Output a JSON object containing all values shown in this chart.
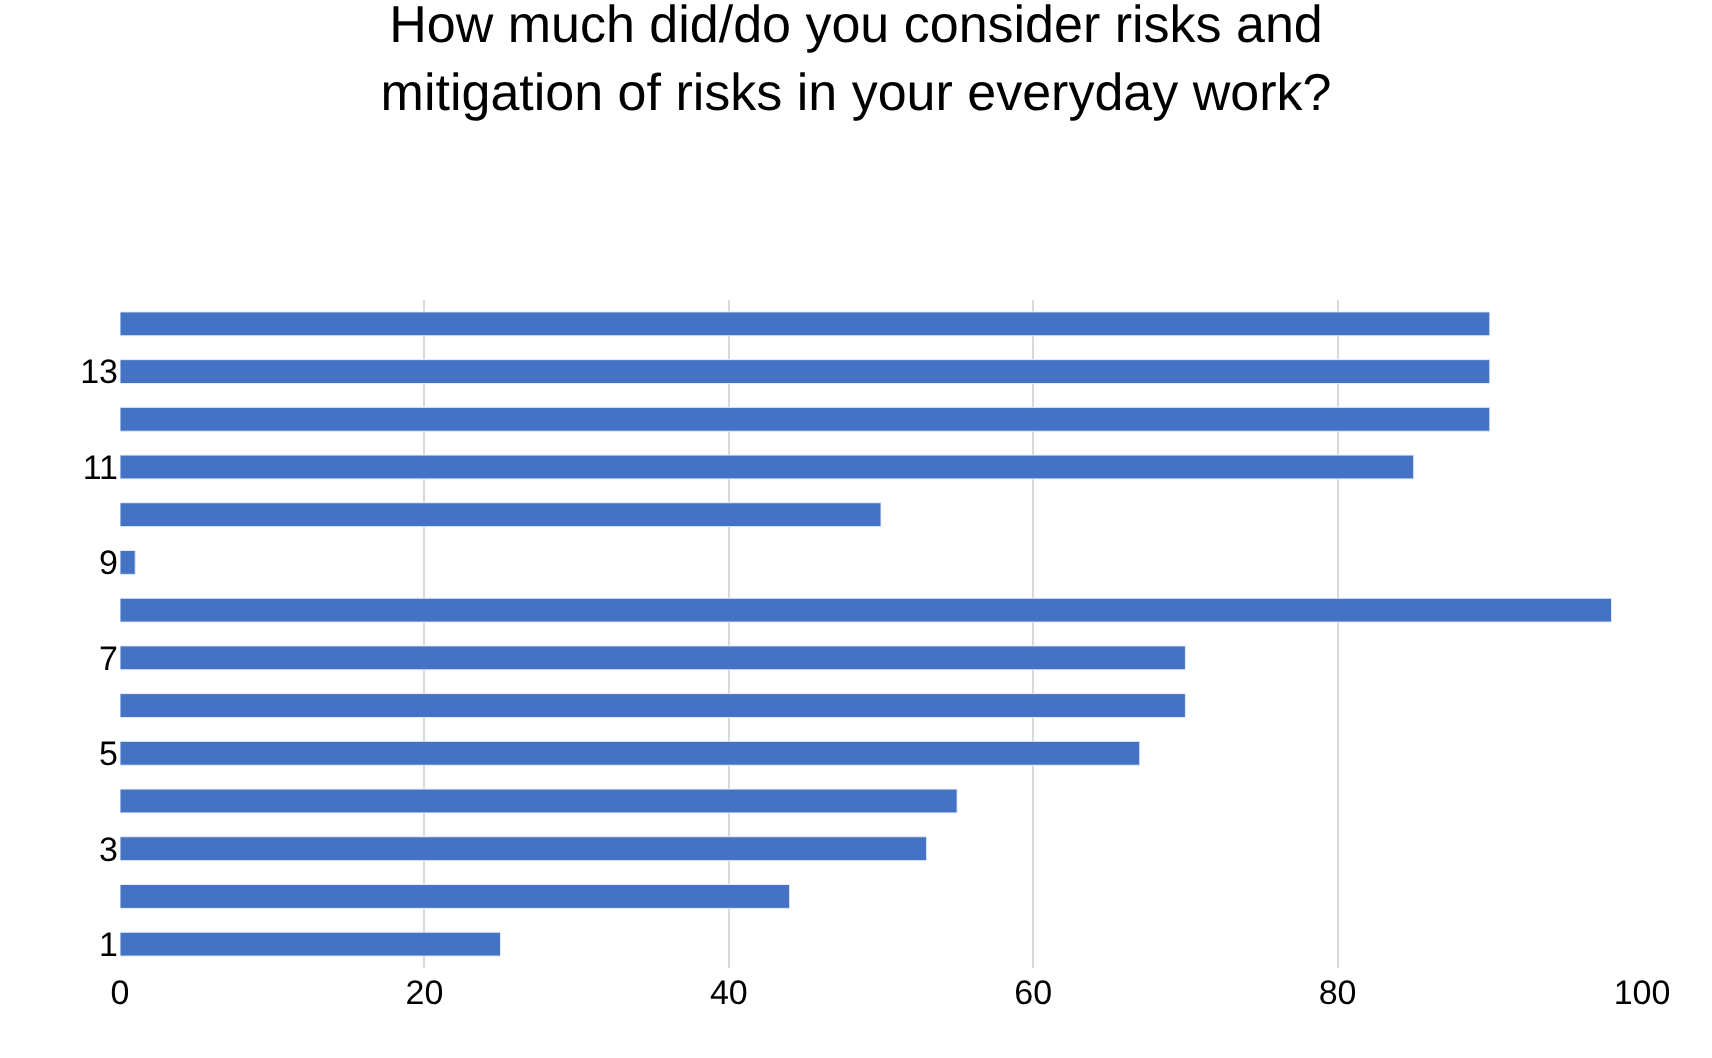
{
  "chart_data": {
    "type": "bar",
    "orientation": "horizontal",
    "title": "How much did/do you consider risks and mitigation of risks in your everyday work?",
    "categories": [
      null,
      "13",
      null,
      "11",
      null,
      "9",
      null,
      "7",
      null,
      "5",
      null,
      "3",
      null,
      "1"
    ],
    "values": [
      90,
      90,
      90,
      85,
      50,
      1,
      98,
      70,
      70,
      67,
      55,
      53,
      44,
      25
    ],
    "color": "#4472c4",
    "xlim": [
      0,
      100
    ],
    "xticks": [
      0,
      20,
      40,
      60,
      80,
      100
    ],
    "grid": "x"
  }
}
